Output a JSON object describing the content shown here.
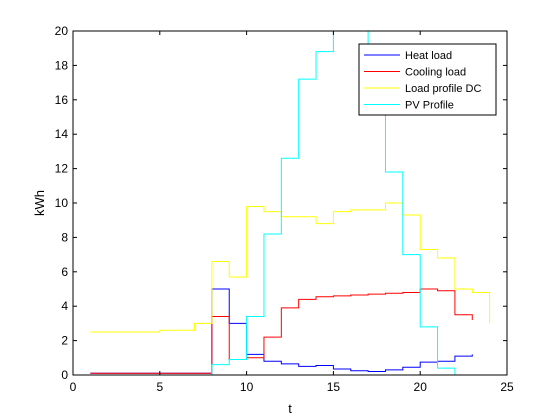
{
  "chart_data": {
    "type": "line",
    "step": true,
    "xlabel": "t",
    "ylabel": "kWh",
    "xlim": [
      0,
      25
    ],
    "ylim": [
      0,
      20
    ],
    "xticks": [
      0,
      5,
      10,
      15,
      20,
      25
    ],
    "yticks": [
      0,
      2,
      4,
      6,
      8,
      10,
      12,
      14,
      16,
      18,
      20
    ],
    "grid": false,
    "legend": "top-right",
    "series": [
      {
        "name": "Heat load",
        "color": "#0000ff",
        "x": [
          1,
          2,
          3,
          4,
          5,
          6,
          7,
          8,
          9,
          10,
          11,
          12,
          13,
          14,
          15,
          16,
          17,
          18,
          19,
          20,
          21,
          22,
          23
        ],
        "y": [
          0.1,
          0.1,
          0.1,
          0.1,
          0.1,
          0.1,
          0.1,
          5.0,
          3.0,
          1.2,
          0.8,
          0.65,
          0.5,
          0.55,
          0.35,
          0.25,
          0.2,
          0.3,
          0.45,
          0.75,
          0.8,
          1.1,
          1.2
        ]
      },
      {
        "name": "Cooling load",
        "color": "#ff0000",
        "x": [
          1,
          2,
          3,
          4,
          5,
          6,
          7,
          8,
          9,
          10,
          11,
          12,
          13,
          14,
          15,
          16,
          17,
          18,
          19,
          20,
          21,
          22,
          23
        ],
        "y": [
          0.1,
          0.1,
          0.1,
          0.1,
          0.1,
          0.1,
          0.1,
          3.4,
          0.9,
          1.0,
          2.2,
          3.9,
          4.4,
          4.55,
          4.6,
          4.65,
          4.7,
          4.75,
          4.8,
          5.0,
          4.9,
          3.5,
          3.2
        ]
      },
      {
        "name": "Load profile DC",
        "color": "#ffff00",
        "x": [
          1,
          2,
          3,
          4,
          5,
          6,
          7,
          8,
          9,
          10,
          11,
          12,
          13,
          14,
          15,
          16,
          17,
          18,
          19,
          20,
          21,
          22,
          23,
          24
        ],
        "y": [
          2.5,
          2.5,
          2.5,
          2.5,
          2.6,
          2.6,
          3.0,
          6.6,
          5.7,
          9.8,
          9.5,
          9.2,
          9.2,
          8.8,
          9.5,
          9.6,
          9.6,
          10.0,
          9.3,
          7.3,
          6.8,
          5.0,
          4.8,
          3.0
        ]
      },
      {
        "name": "PV Profile",
        "color": "#00ffff",
        "x": [
          1,
          2,
          3,
          4,
          5,
          6,
          7,
          8,
          9,
          10,
          11,
          12,
          13,
          14,
          15,
          16,
          17,
          18,
          19,
          20,
          21,
          22,
          23
        ],
        "y": [
          0,
          0,
          0,
          0,
          0,
          0,
          0,
          0.6,
          0.9,
          3.4,
          8.2,
          12.6,
          17.2,
          18.8,
          20.0,
          20.0,
          16.2,
          11.8,
          7.0,
          2.8,
          0.4,
          0,
          0
        ]
      }
    ]
  }
}
